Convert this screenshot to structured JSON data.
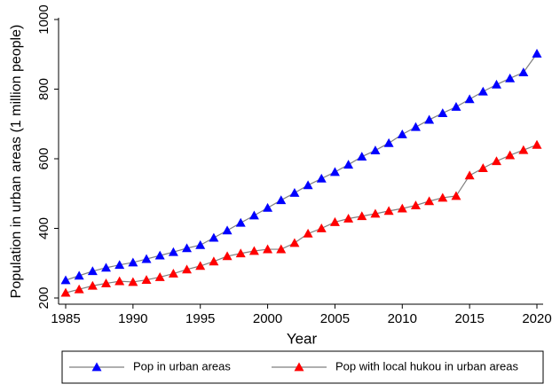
{
  "chart_data": {
    "type": "line",
    "x": [
      1985,
      1986,
      1987,
      1988,
      1989,
      1990,
      1991,
      1992,
      1993,
      1994,
      1995,
      1996,
      1997,
      1998,
      1999,
      2000,
      2001,
      2002,
      2003,
      2004,
      2005,
      2006,
      2007,
      2008,
      2009,
      2010,
      2011,
      2012,
      2013,
      2014,
      2015,
      2016,
      2017,
      2018,
      2019,
      2020
    ],
    "series": [
      {
        "name": "Pop in urban areas",
        "color": "#0000ff",
        "values": [
          251,
          264,
          277,
          287,
          295,
          302,
          312,
          322,
          332,
          343,
          352,
          373,
          394,
          416,
          437,
          459,
          481,
          502,
          524,
          543,
          562,
          583,
          606,
          624,
          645,
          670,
          691,
          712,
          731,
          749,
          771,
          793,
          813,
          831,
          848,
          902
        ]
      },
      {
        "name": "Pop with local hukou in urban areas",
        "color": "#ff0000",
        "values": [
          215,
          225,
          235,
          242,
          248,
          246,
          252,
          260,
          270,
          282,
          292,
          305,
          320,
          328,
          335,
          340,
          340,
          358,
          385,
          400,
          418,
          428,
          435,
          442,
          450,
          457,
          466,
          478,
          488,
          493,
          552,
          573,
          593,
          610,
          625,
          640
        ]
      }
    ],
    "line_color": "#7f7f7f",
    "xlabel": "Year",
    "ylabel": "Population in urban areas (1 million people)",
    "xlim": [
      1985,
      2020
    ],
    "ylim": [
      200,
      1000
    ],
    "xticks": [
      1985,
      1990,
      1995,
      2000,
      2005,
      2010,
      2015,
      2020
    ],
    "yticks": [
      200,
      400,
      600,
      800,
      1000
    ],
    "legend": "bottom"
  }
}
